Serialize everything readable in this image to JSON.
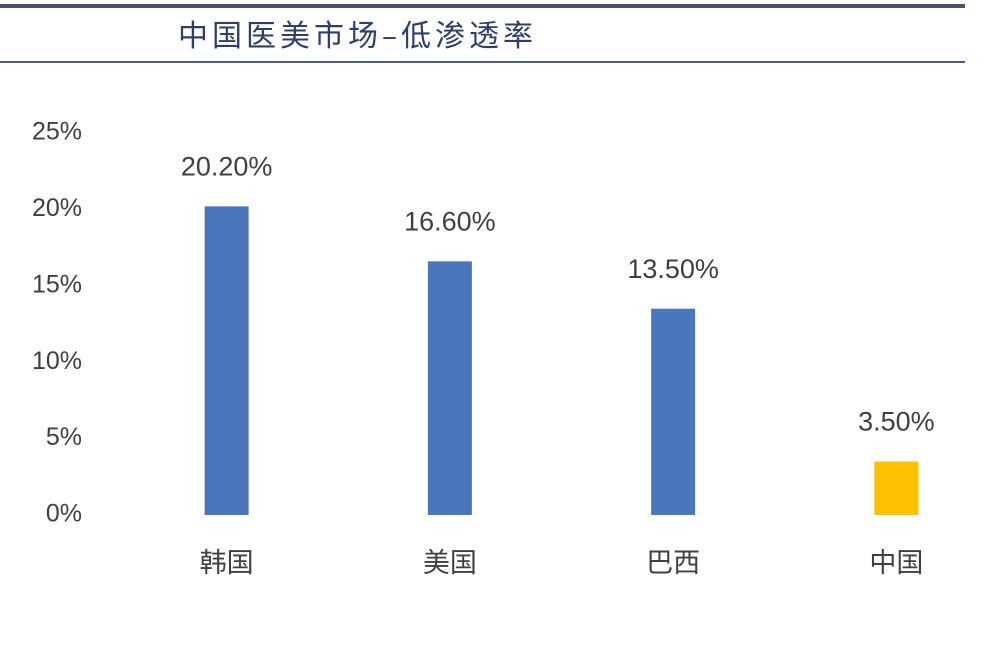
{
  "chart_data": {
    "type": "bar",
    "title": "中国医美市场–低渗透率",
    "categories": [
      "韩国",
      "美国",
      "巴西",
      "中国"
    ],
    "values": [
      20.2,
      16.6,
      13.5,
      3.5
    ],
    "value_labels": [
      "20.20%",
      "16.60%",
      "13.50%",
      "3.50%"
    ],
    "colors": [
      "#4a77bb",
      "#4a77bb",
      "#4a77bb",
      "#ffc000"
    ],
    "ylim": [
      0,
      25
    ],
    "yticks": [
      {
        "value": 0,
        "label": "0%"
      },
      {
        "value": 5,
        "label": "5%"
      },
      {
        "value": 10,
        "label": "10%"
      },
      {
        "value": 15,
        "label": "15%"
      },
      {
        "value": 20,
        "label": "20%"
      },
      {
        "value": 25,
        "label": "25%"
      }
    ],
    "grid": false
  }
}
